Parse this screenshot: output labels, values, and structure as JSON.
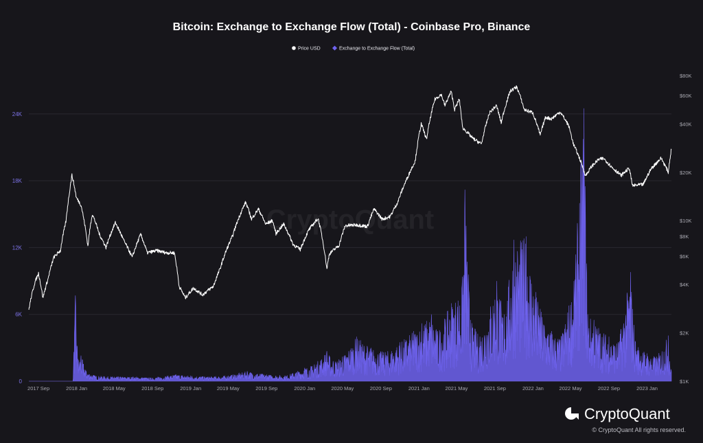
{
  "colors": {
    "background": "#17161b",
    "price_line": "#ffffff",
    "flow_fill": "#6f63f0",
    "left_axis_text": "#7d73e8",
    "right_axis_text": "#a8a8b0",
    "grid": "#2a2930"
  },
  "brand": {
    "logo_icon": "cryptoquant-logo-icon",
    "name": "CryptoQuant",
    "copyright": "© CryptoQuant All rights reserved.",
    "watermark": "CryptoQuant"
  },
  "chart_data": {
    "type": "line",
    "title": "Bitcoin: Exchange to Exchange Flow (Total) - Coinbase Pro, Binance",
    "legend": {
      "placement": "top-center",
      "entries": [
        "Price USD",
        "Exchange to Exchange Flow (Total)"
      ]
    },
    "grid": true,
    "x_axis": {
      "type": "date",
      "range": [
        "2017-08-01",
        "2023-03-20"
      ],
      "tick_labels": [
        "2017 Sep",
        "2018 Jan",
        "2018 May",
        "2018 Sep",
        "2019 Jan",
        "2019 May",
        "2019 Sep",
        "2020 Jan",
        "2020 May",
        "2020 Sep",
        "2021 Jan",
        "2021 May",
        "2021 Sep",
        "2022 Jan",
        "2022 May",
        "2022 Sep",
        "2023 Jan"
      ],
      "tick_dates": [
        "2017-09-01",
        "2018-01-01",
        "2018-05-01",
        "2018-09-01",
        "2019-01-01",
        "2019-05-01",
        "2019-09-01",
        "2020-01-01",
        "2020-05-01",
        "2020-09-01",
        "2021-01-01",
        "2021-05-01",
        "2021-09-01",
        "2022-01-01",
        "2022-05-01",
        "2022-09-01",
        "2023-01-01"
      ]
    },
    "y_left": {
      "label": "",
      "range": [
        0,
        28800
      ],
      "tick_values": [
        0,
        6000,
        12000,
        18000,
        24000
      ],
      "tick_labels": [
        "0",
        "6K",
        "12K",
        "18K",
        "24K"
      ]
    },
    "y_right": {
      "label": "",
      "scale": "log",
      "range": [
        1000,
        80000
      ],
      "tick_values": [
        1000,
        2000,
        4000,
        6000,
        8000,
        10000,
        20000,
        40000,
        60000,
        80000
      ],
      "tick_labels": [
        "$1K",
        "$2K",
        "$4K",
        "$6K",
        "$8K",
        "$10K",
        "$20K",
        "$40K",
        "$60K",
        "$80K"
      ]
    },
    "series": [
      {
        "name": "Price USD",
        "axis": "right",
        "kind": "line",
        "points": [
          [
            "2017-08-01",
            2800
          ],
          [
            "2017-08-20",
            4100
          ],
          [
            "2017-09-01",
            4700
          ],
          [
            "2017-09-15",
            3300
          ],
          [
            "2017-10-01",
            4300
          ],
          [
            "2017-10-20",
            5900
          ],
          [
            "2017-11-10",
            6500
          ],
          [
            "2017-11-28",
            9900
          ],
          [
            "2017-12-08",
            14500
          ],
          [
            "2017-12-17",
            19200
          ],
          [
            "2017-12-31",
            13900
          ],
          [
            "2018-01-15",
            12500
          ],
          [
            "2018-02-06",
            6900
          ],
          [
            "2018-02-20",
            11000
          ],
          [
            "2018-03-15",
            8200
          ],
          [
            "2018-04-05",
            6800
          ],
          [
            "2018-05-05",
            9700
          ],
          [
            "2018-06-01",
            7500
          ],
          [
            "2018-06-28",
            5900
          ],
          [
            "2018-07-25",
            8200
          ],
          [
            "2018-08-15",
            6300
          ],
          [
            "2018-09-15",
            6500
          ],
          [
            "2018-10-15",
            6300
          ],
          [
            "2018-11-10",
            6300
          ],
          [
            "2018-11-25",
            3900
          ],
          [
            "2018-12-15",
            3300
          ],
          [
            "2019-01-10",
            3800
          ],
          [
            "2019-02-08",
            3450
          ],
          [
            "2019-03-15",
            3900
          ],
          [
            "2019-04-05",
            5000
          ],
          [
            "2019-05-15",
            8000
          ],
          [
            "2019-06-26",
            13000
          ],
          [
            "2019-07-15",
            10200
          ],
          [
            "2019-08-06",
            11800
          ],
          [
            "2019-08-29",
            9500
          ],
          [
            "2019-09-20",
            10000
          ],
          [
            "2019-10-01",
            8300
          ],
          [
            "2019-10-26",
            9500
          ],
          [
            "2019-11-25",
            7100
          ],
          [
            "2019-12-18",
            6600
          ],
          [
            "2020-01-15",
            8800
          ],
          [
            "2020-02-13",
            10300
          ],
          [
            "2020-03-12",
            5000
          ],
          [
            "2020-03-20",
            6200
          ],
          [
            "2020-04-20",
            7000
          ],
          [
            "2020-05-10",
            9300
          ],
          [
            "2020-06-15",
            9400
          ],
          [
            "2020-07-20",
            9200
          ],
          [
            "2020-08-10",
            11800
          ],
          [
            "2020-09-05",
            10200
          ],
          [
            "2020-10-01",
            10600
          ],
          [
            "2020-10-25",
            13000
          ],
          [
            "2020-11-25",
            18500
          ],
          [
            "2020-12-20",
            23500
          ],
          [
            "2021-01-08",
            40000
          ],
          [
            "2021-01-25",
            32000
          ],
          [
            "2021-02-21",
            57000
          ],
          [
            "2021-03-13",
            61000
          ],
          [
            "2021-03-25",
            52000
          ],
          [
            "2021-04-14",
            63500
          ],
          [
            "2021-04-25",
            49000
          ],
          [
            "2021-05-10",
            57000
          ],
          [
            "2021-05-20",
            38000
          ],
          [
            "2021-06-22",
            32500
          ],
          [
            "2021-07-20",
            30000
          ],
          [
            "2021-08-15",
            47000
          ],
          [
            "2021-09-06",
            52000
          ],
          [
            "2021-09-21",
            40500
          ],
          [
            "2021-10-20",
            64000
          ],
          [
            "2021-11-10",
            68000
          ],
          [
            "2021-12-04",
            49000
          ],
          [
            "2021-12-31",
            47000
          ],
          [
            "2022-01-24",
            34000
          ],
          [
            "2022-02-10",
            44000
          ],
          [
            "2022-03-01",
            43000
          ],
          [
            "2022-03-29",
            47500
          ],
          [
            "2022-04-25",
            39000
          ],
          [
            "2022-05-10",
            30000
          ],
          [
            "2022-06-18",
            19000
          ],
          [
            "2022-07-08",
            21800
          ],
          [
            "2022-07-30",
            24000
          ],
          [
            "2022-08-15",
            24400
          ],
          [
            "2022-09-10",
            21500
          ],
          [
            "2022-10-10",
            19100
          ],
          [
            "2022-11-05",
            21200
          ],
          [
            "2022-11-15",
            16500
          ],
          [
            "2022-12-20",
            16800
          ],
          [
            "2023-01-14",
            21000
          ],
          [
            "2023-02-15",
            24500
          ],
          [
            "2023-03-10",
            20000
          ],
          [
            "2023-03-20",
            28000
          ]
        ]
      },
      {
        "name": "Exchange to Exchange Flow (Total)",
        "axis": "left",
        "kind": "area",
        "points": [
          [
            "2017-08-01",
            0
          ],
          [
            "2017-12-20",
            0
          ],
          [
            "2017-12-28",
            7700
          ],
          [
            "2018-01-05",
            2000
          ],
          [
            "2018-01-15",
            2300
          ],
          [
            "2018-02-01",
            900
          ],
          [
            "2018-03-01",
            500
          ],
          [
            "2018-05-01",
            400
          ],
          [
            "2018-07-01",
            400
          ],
          [
            "2018-09-01",
            300
          ],
          [
            "2018-11-15",
            600
          ],
          [
            "2019-01-01",
            500
          ],
          [
            "2019-03-01",
            400
          ],
          [
            "2019-05-01",
            500
          ],
          [
            "2019-07-01",
            900
          ],
          [
            "2019-09-01",
            600
          ],
          [
            "2019-11-01",
            500
          ],
          [
            "2020-01-01",
            1200
          ],
          [
            "2020-02-01",
            1500
          ],
          [
            "2020-03-12",
            2700
          ],
          [
            "2020-04-01",
            1800
          ],
          [
            "2020-05-01",
            2200
          ],
          [
            "2020-06-15",
            4000
          ],
          [
            "2020-08-01",
            3000
          ],
          [
            "2020-09-15",
            2600
          ],
          [
            "2020-11-01",
            3500
          ],
          [
            "2020-12-15",
            4500
          ],
          [
            "2021-01-10",
            5200
          ],
          [
            "2021-02-10",
            6000
          ],
          [
            "2021-03-01",
            4500
          ],
          [
            "2021-04-15",
            7000
          ],
          [
            "2021-05-19",
            8600
          ],
          [
            "2021-05-28",
            17200
          ],
          [
            "2021-06-15",
            5500
          ],
          [
            "2021-07-15",
            4000
          ],
          [
            "2021-09-07",
            9000
          ],
          [
            "2021-10-01",
            6000
          ],
          [
            "2021-11-01",
            12700
          ],
          [
            "2021-12-10",
            13000
          ],
          [
            "2022-01-10",
            8000
          ],
          [
            "2022-01-24",
            6500
          ],
          [
            "2022-03-01",
            4500
          ],
          [
            "2022-04-01",
            4000
          ],
          [
            "2022-05-12",
            9000
          ],
          [
            "2022-06-13",
            24500
          ],
          [
            "2022-06-25",
            6000
          ],
          [
            "2022-07-15",
            5500
          ],
          [
            "2022-09-01",
            4000
          ],
          [
            "2022-10-01",
            3500
          ],
          [
            "2022-11-09",
            9800
          ],
          [
            "2022-11-25",
            3500
          ],
          [
            "2023-01-01",
            2500
          ],
          [
            "2023-02-01",
            2200
          ],
          [
            "2023-03-10",
            4100
          ],
          [
            "2023-03-20",
            800
          ]
        ]
      }
    ]
  }
}
